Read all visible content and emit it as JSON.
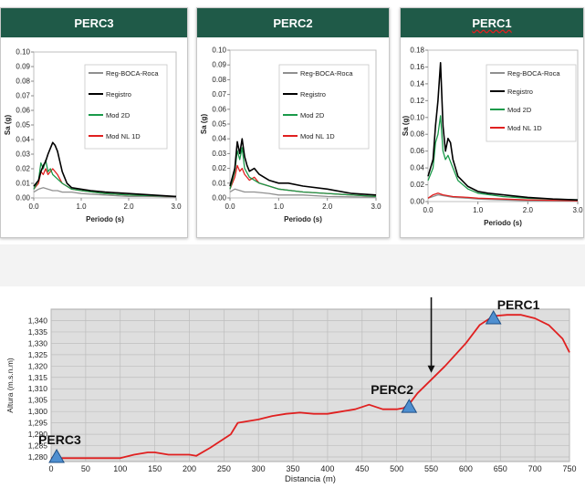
{
  "chart_data": [
    {
      "type": "line",
      "title": "PERC3",
      "xlabel": "Periodo (s)",
      "ylabel": "Sa (g)",
      "xlim": [
        0,
        3.0
      ],
      "ylim": [
        0,
        0.1
      ],
      "x_ticks": [
        "0.0",
        "1.0",
        "2.0",
        "3.0"
      ],
      "y_ticks": [
        "0.00",
        "0.01",
        "0.02",
        "0.03",
        "0.04",
        "0.05",
        "0.06",
        "0.07",
        "0.08",
        "0.09",
        "0.10"
      ],
      "legend_position": "right",
      "series": [
        {
          "name": "Reg-BOCA-Roca",
          "color": "#909090",
          "x": [
            0,
            0.1,
            0.2,
            0.3,
            0.4,
            0.5,
            0.6,
            0.8,
            1.0,
            1.5,
            2.0,
            2.5,
            3.0
          ],
          "y": [
            0.004,
            0.006,
            0.007,
            0.006,
            0.005,
            0.005,
            0.004,
            0.004,
            0.003,
            0.002,
            0.001,
            0.001,
            0.0005
          ]
        },
        {
          "name": "Registro",
          "color": "#000000",
          "x": [
            0,
            0.1,
            0.15,
            0.2,
            0.25,
            0.3,
            0.35,
            0.4,
            0.45,
            0.5,
            0.55,
            0.6,
            0.7,
            0.8,
            1.0,
            1.2,
            1.5,
            2.0,
            2.5,
            3.0
          ],
          "y": [
            0.008,
            0.012,
            0.018,
            0.022,
            0.025,
            0.03,
            0.034,
            0.038,
            0.036,
            0.032,
            0.025,
            0.018,
            0.01,
            0.007,
            0.006,
            0.005,
            0.004,
            0.003,
            0.002,
            0.001
          ]
        },
        {
          "name": "Mod 2D",
          "color": "#1a9a4a",
          "x": [
            0,
            0.1,
            0.15,
            0.2,
            0.25,
            0.3,
            0.35,
            0.4,
            0.5,
            0.6,
            0.8,
            1.0,
            1.5,
            2.0,
            3.0
          ],
          "y": [
            0.006,
            0.012,
            0.024,
            0.02,
            0.026,
            0.018,
            0.02,
            0.016,
            0.013,
            0.01,
            0.006,
            0.005,
            0.003,
            0.002,
            0.001
          ]
        },
        {
          "name": "Mod NL 1D",
          "color": "#e02020",
          "x": [
            0,
            0.1,
            0.15,
            0.2,
            0.25,
            0.3,
            0.35,
            0.4,
            0.5,
            0.6,
            0.8,
            1.0,
            1.5,
            2.0,
            3.0
          ],
          "y": [
            0.006,
            0.01,
            0.018,
            0.016,
            0.02,
            0.016,
            0.018,
            0.02,
            0.016,
            0.01,
            0.006,
            0.005,
            0.003,
            0.002,
            0.001
          ]
        }
      ]
    },
    {
      "type": "line",
      "title": "PERC2",
      "xlabel": "Periodo (s)",
      "ylabel": "Sa (g)",
      "xlim": [
        0,
        3.0
      ],
      "ylim": [
        0,
        0.1
      ],
      "x_ticks": [
        "0.0",
        "1.0",
        "2.0",
        "3.0"
      ],
      "y_ticks": [
        "0.00",
        "0.01",
        "0.02",
        "0.03",
        "0.04",
        "0.05",
        "0.06",
        "0.07",
        "0.08",
        "0.09",
        "0.10"
      ],
      "legend_position": "right",
      "series": [
        {
          "name": "Reg-BOCA-Roca",
          "color": "#909090",
          "x": [
            0,
            0.1,
            0.2,
            0.3,
            0.5,
            0.8,
            1.0,
            1.5,
            2.0,
            3.0
          ],
          "y": [
            0.004,
            0.006,
            0.005,
            0.004,
            0.004,
            0.003,
            0.002,
            0.002,
            0.001,
            0.0005
          ]
        },
        {
          "name": "Registro",
          "color": "#000000",
          "x": [
            0,
            0.1,
            0.15,
            0.2,
            0.25,
            0.3,
            0.35,
            0.4,
            0.5,
            0.6,
            0.8,
            1.0,
            1.2,
            1.5,
            2.0,
            2.5,
            3.0
          ],
          "y": [
            0.008,
            0.02,
            0.038,
            0.03,
            0.04,
            0.028,
            0.022,
            0.018,
            0.02,
            0.016,
            0.012,
            0.01,
            0.01,
            0.008,
            0.006,
            0.003,
            0.002
          ]
        },
        {
          "name": "Mod 2D",
          "color": "#1a9a4a",
          "x": [
            0,
            0.1,
            0.15,
            0.2,
            0.25,
            0.3,
            0.4,
            0.5,
            0.6,
            0.8,
            1.0,
            1.5,
            2.0,
            3.0
          ],
          "y": [
            0.006,
            0.018,
            0.032,
            0.026,
            0.034,
            0.02,
            0.014,
            0.012,
            0.01,
            0.008,
            0.006,
            0.004,
            0.003,
            0.001
          ]
        },
        {
          "name": "Mod NL 1D",
          "color": "#e02020",
          "x": [
            0,
            0.1,
            0.15,
            0.2,
            0.25,
            0.3,
            0.4,
            0.5,
            0.6,
            0.8,
            1.0,
            1.5,
            2.0,
            3.0
          ],
          "y": [
            0.006,
            0.014,
            0.022,
            0.018,
            0.02,
            0.016,
            0.012,
            0.014,
            0.01,
            0.008,
            0.006,
            0.004,
            0.003,
            0.001
          ]
        }
      ]
    },
    {
      "type": "line",
      "title": "PERC1",
      "xlabel": "Periodo (s)",
      "ylabel": "Sa (g)",
      "xlim": [
        0,
        3.0
      ],
      "ylim": [
        0,
        0.18
      ],
      "x_ticks": [
        "0.0",
        "1.0",
        "2.0",
        "3.0"
      ],
      "y_ticks": [
        "0.00",
        "0.02",
        "0.04",
        "0.06",
        "0.08",
        "0.10",
        "0.12",
        "0.14",
        "0.16",
        "0.18"
      ],
      "legend_position": "right",
      "series": [
        {
          "name": "Reg-BOCA-Roca",
          "color": "#909090",
          "x": [
            0,
            0.1,
            0.2,
            0.3,
            0.5,
            0.8,
            1.0,
            1.5,
            2.0,
            3.0
          ],
          "y": [
            0.004,
            0.006,
            0.008,
            0.007,
            0.005,
            0.004,
            0.003,
            0.002,
            0.001,
            0.0005
          ]
        },
        {
          "name": "Registro",
          "color": "#000000",
          "x": [
            0,
            0.1,
            0.15,
            0.2,
            0.25,
            0.3,
            0.35,
            0.4,
            0.45,
            0.5,
            0.6,
            0.8,
            1.0,
            1.2,
            1.5,
            2.0,
            2.5,
            3.0
          ],
          "y": [
            0.03,
            0.05,
            0.09,
            0.12,
            0.165,
            0.09,
            0.06,
            0.075,
            0.07,
            0.05,
            0.03,
            0.018,
            0.012,
            0.01,
            0.008,
            0.005,
            0.003,
            0.002
          ]
        },
        {
          "name": "Mod 2D",
          "color": "#1a9a4a",
          "x": [
            0,
            0.1,
            0.15,
            0.2,
            0.25,
            0.3,
            0.35,
            0.4,
            0.5,
            0.6,
            0.8,
            1.0,
            1.5,
            2.0,
            3.0
          ],
          "y": [
            0.025,
            0.04,
            0.07,
            0.08,
            0.102,
            0.06,
            0.05,
            0.055,
            0.04,
            0.025,
            0.015,
            0.01,
            0.006,
            0.004,
            0.002
          ]
        },
        {
          "name": "Mod NL 1D",
          "color": "#e02020",
          "x": [
            0,
            0.1,
            0.2,
            0.3,
            0.5,
            0.8,
            1.0,
            1.5,
            2.0,
            3.0
          ],
          "y": [
            0.004,
            0.008,
            0.01,
            0.008,
            0.006,
            0.005,
            0.004,
            0.003,
            0.002,
            0.001
          ]
        }
      ]
    },
    {
      "type": "line",
      "title": "",
      "xlabel": "Distancia (m)",
      "ylabel": "Altura (m.s.n.m)",
      "xlim": [
        0,
        750
      ],
      "ylim": [
        1278,
        1345
      ],
      "x_ticks": [
        "0",
        "50",
        "100",
        "150",
        "200",
        "250",
        "300",
        "350",
        "400",
        "450",
        "500",
        "550",
        "600",
        "650",
        "700",
        "750"
      ],
      "y_ticks": [
        "1,280",
        "1,285",
        "1,290",
        "1,295",
        "1,300",
        "1,305",
        "1,310",
        "1,315",
        "1,320",
        "1,325",
        "1,330",
        "1,335",
        "1,340"
      ],
      "series": [
        {
          "name": "",
          "color": "#e02020",
          "x": [
            0,
            50,
            100,
            120,
            140,
            150,
            170,
            200,
            210,
            230,
            250,
            260,
            270,
            290,
            300,
            320,
            340,
            360,
            380,
            400,
            420,
            440,
            460,
            470,
            480,
            500,
            510,
            520,
            530,
            550,
            570,
            600,
            620,
            640,
            660,
            680,
            700,
            720,
            740,
            750
          ],
          "y": [
            1279.5,
            1279.5,
            1279.5,
            1281,
            1282,
            1282,
            1281,
            1281,
            1280.5,
            1284,
            1288,
            1290,
            1295,
            1296,
            1296.5,
            1298,
            1299,
            1299.5,
            1299,
            1299,
            1300,
            1301,
            1303,
            1302,
            1301,
            1301,
            1301.5,
            1304,
            1308,
            1314,
            1320,
            1330,
            1338,
            1342,
            1342.5,
            1342.5,
            1341,
            1338,
            1332,
            1326
          ]
        }
      ],
      "markers": [
        {
          "label": "PERC3",
          "x": 8,
          "y": 1280
        },
        {
          "label": "PERC2",
          "x": 518,
          "y": 1302
        },
        {
          "label": "PERC1",
          "x": 640,
          "y": 1341
        }
      ],
      "arrow_x": 550
    }
  ]
}
